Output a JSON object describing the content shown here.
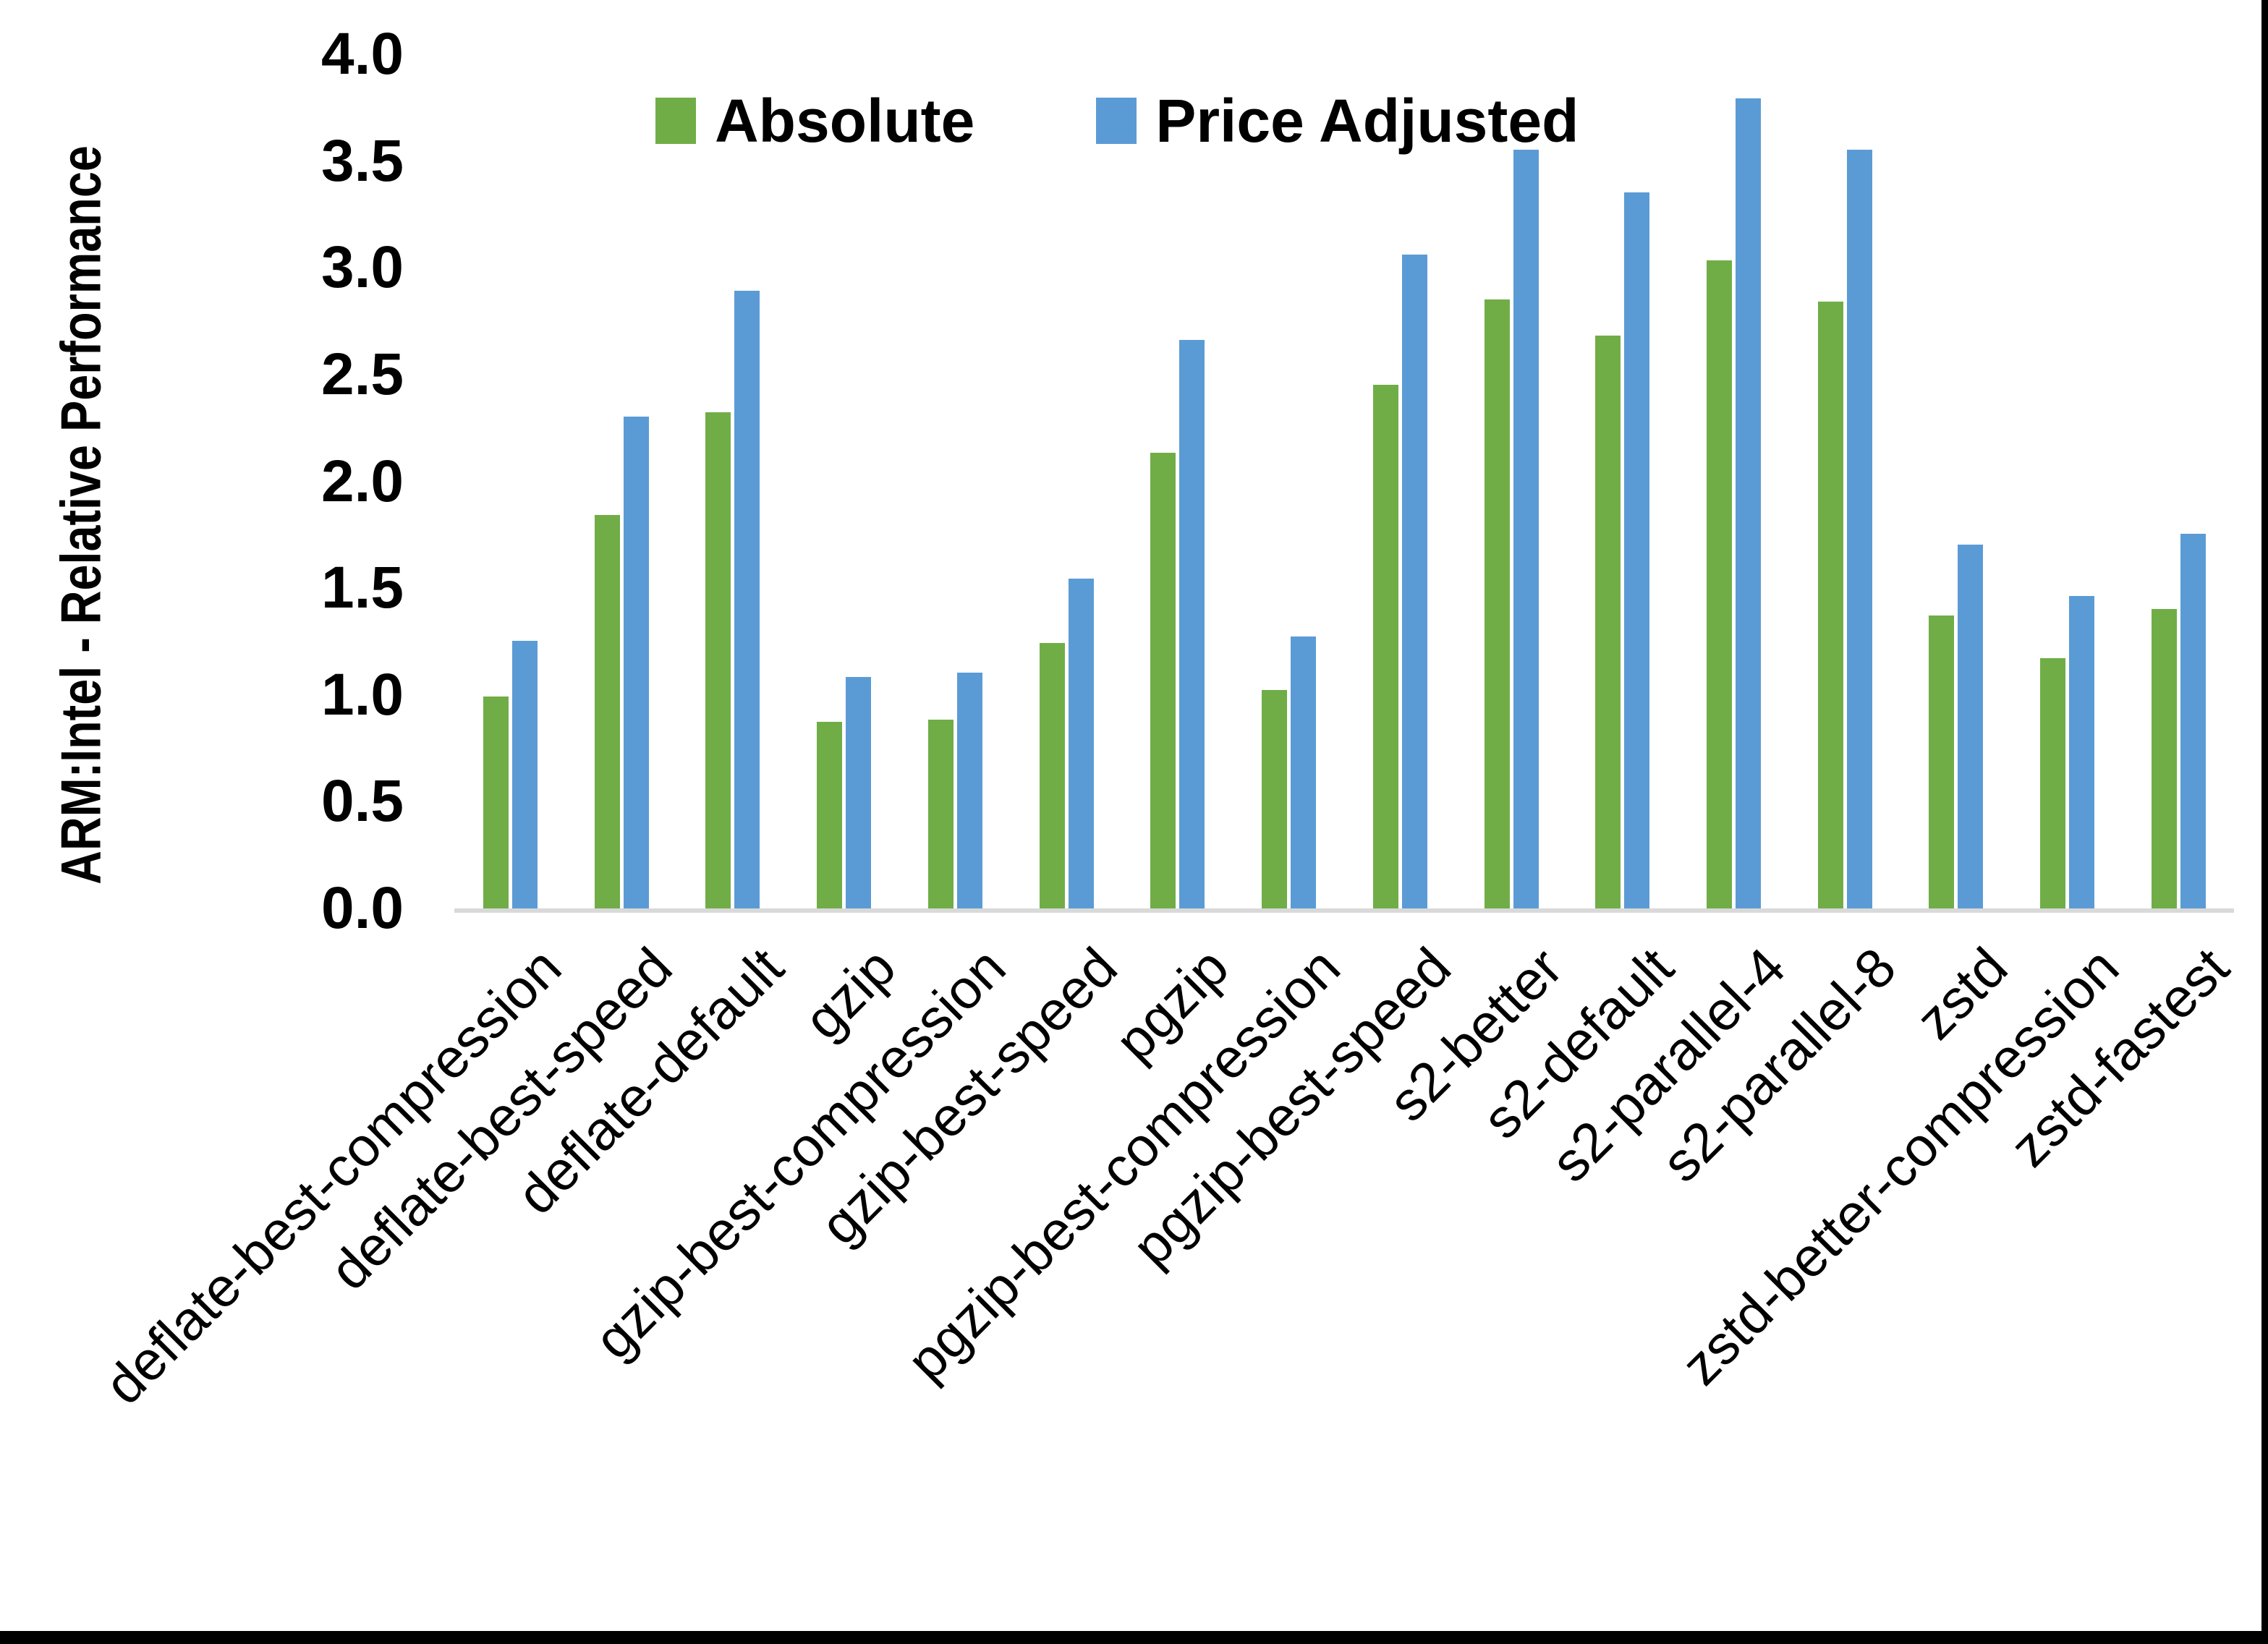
{
  "chart_data": {
    "type": "bar",
    "title": "",
    "xlabel": "",
    "ylabel": "ARM:Intel - Relative Performance",
    "ylim": [
      0.0,
      4.0
    ],
    "ytick_step": 0.5,
    "yticks": [
      "0.0",
      "0.5",
      "1.0",
      "1.5",
      "2.0",
      "2.5",
      "3.0",
      "3.5",
      "4.0"
    ],
    "grid": false,
    "legend_position": "top-center",
    "categories": [
      "deflate-best-compression",
      "deflate-best-speed",
      "deflate-default",
      "gzip",
      "gzip-best-compression",
      "gzip-best-speed",
      "pgzip",
      "pgzip-best-compression",
      "pgzip-best-speed",
      "s2-better",
      "s2-default",
      "s2-parallel-4",
      "s2-parallel-8",
      "zstd",
      "zstd-better-compression",
      "zstd-fastest"
    ],
    "series": [
      {
        "name": "Absolute",
        "color": "#70AD47",
        "values": [
          1.0,
          1.85,
          2.33,
          0.88,
          0.89,
          1.25,
          2.14,
          1.03,
          2.46,
          2.86,
          2.69,
          3.04,
          2.85,
          1.38,
          1.18,
          1.41
        ]
      },
      {
        "name": "Price Adjusted",
        "color": "#5B9BD5",
        "values": [
          1.26,
          2.31,
          2.9,
          1.09,
          1.11,
          1.55,
          2.67,
          1.28,
          3.07,
          3.56,
          3.36,
          3.8,
          3.56,
          1.71,
          1.47,
          1.76
        ]
      }
    ]
  },
  "legend": {
    "absolute_label": "Absolute",
    "price_adjusted_label": "Price Adjusted"
  },
  "axis": {
    "y_title": "ARM:Intel - Relative Performance"
  },
  "colors": {
    "absolute": "#70AD47",
    "price_adjusted": "#5B9BD5",
    "axis_line": "#D9D9D9",
    "text": "#000000",
    "background": "#FFFFFF",
    "border": "#000000"
  }
}
